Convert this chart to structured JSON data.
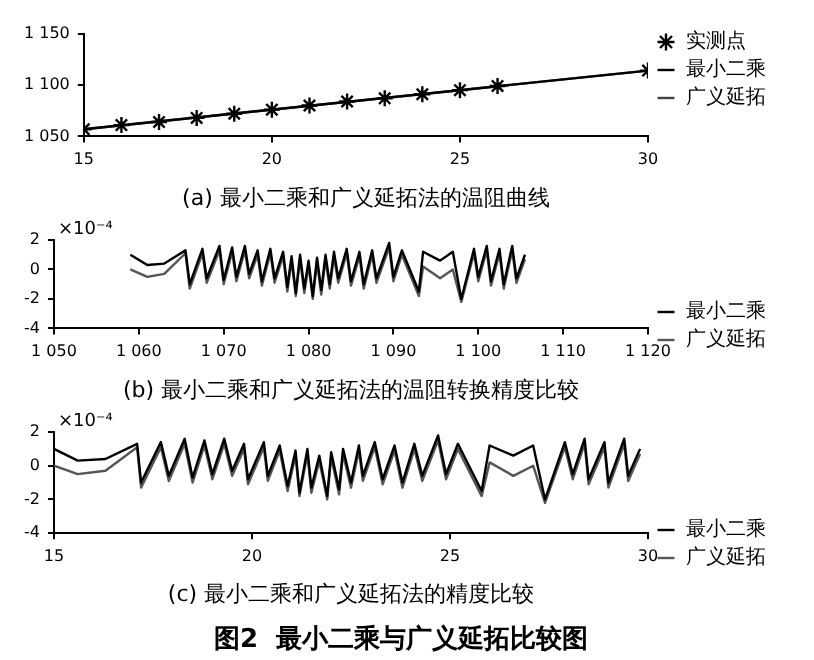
{
  "chart_data": [
    {
      "type": "line",
      "xlabel": "(a) 最小二乘和广义延拓法的温阻曲线",
      "xlim": [
        15,
        30
      ],
      "xticks": [
        15,
        20,
        25,
        30
      ],
      "ylim": [
        1050,
        1150
      ],
      "yticks": [
        {
          "value": 1050,
          "label": "1 050"
        },
        {
          "value": 1100,
          "label": "1 100"
        },
        {
          "value": 1150,
          "label": "1 150"
        }
      ],
      "legend": "top right",
      "grid": false,
      "series": [
        {
          "name": "实测点",
          "type": "scatter",
          "marker": "cross",
          "color": "#000000",
          "x": [
            15,
            16,
            17,
            18,
            19,
            20,
            21,
            22,
            23,
            24,
            25,
            26,
            27,
            28,
            29,
            30
          ],
          "values": [
            1057,
            1061,
            1064,
            1068,
            1072,
            1076,
            1080,
            1084,
            1087,
            1091,
            1095,
            1099,
            null,
            null,
            null,
            1114
          ]
        },
        {
          "name": "最小二乘",
          "type": "line",
          "marker": "none",
          "color": "#000000",
          "x": [
            15,
            30
          ],
          "values": [
            1057,
            1114
          ]
        },
        {
          "name": "广义延拓",
          "type": "line",
          "marker": "none",
          "color": "#444444",
          "x": [
            15,
            30
          ],
          "values": [
            1057,
            1114
          ]
        }
      ]
    },
    {
      "type": "line",
      "xlabel": "(b) 最小二乘和广义延拓法的温阻转换精度比较",
      "annotations": [
        "×10⁻⁴"
      ],
      "xlim": [
        1050,
        1120
      ],
      "xticks": [
        {
          "value": 1050,
          "label": "1 050"
        },
        {
          "value": 1060,
          "label": "1 060"
        },
        {
          "value": 1070,
          "label": "1 070"
        },
        {
          "value": 1080,
          "label": "1 080"
        },
        {
          "value": 1090,
          "label": "1 090"
        },
        {
          "value": 1100,
          "label": "1 100"
        },
        {
          "value": 1110,
          "label": "1 110"
        },
        {
          "value": 1120,
          "label": "1 120"
        }
      ],
      "ylim": [
        -4,
        2
      ],
      "yticks": [
        -4,
        -2,
        0,
        2
      ],
      "legend": "right",
      "grid": false,
      "series": [
        {
          "name": "最小二乘",
          "type": "line",
          "marker": "none",
          "color": "#000000",
          "x": [
            1059,
            1061,
            1063,
            1065.5,
            1066,
            1067.5,
            1068,
            1069.5,
            1070,
            1071,
            1071.5,
            1072.5,
            1073,
            1074,
            1074.5,
            1075.5,
            1076,
            1077,
            1077.5,
            1078,
            1078.5,
            1079,
            1079.5,
            1080,
            1080.5,
            1081,
            1081.5,
            1082,
            1082.5,
            1083,
            1083.5,
            1084.5,
            1085,
            1086,
            1086.5,
            1087.5,
            1088,
            1089.5,
            1090,
            1091,
            1093,
            1093.5,
            1095.5,
            1097,
            1098,
            1099.5,
            1100,
            1101,
            1101.5,
            1102.5,
            1103,
            1104,
            1104.5,
            1105.5
          ],
          "values": [
            1.0,
            0.3,
            0.4,
            1.3,
            -1.0,
            1.4,
            -0.6,
            1.6,
            -0.7,
            1.5,
            -0.5,
            1.6,
            -0.3,
            1.3,
            -0.8,
            1.4,
            -0.6,
            1.2,
            -1.2,
            0.9,
            -1.6,
            1.0,
            -1.3,
            0.6,
            -1.8,
            0.8,
            -1.4,
            1.0,
            -1.0,
            1.2,
            -0.6,
            1.4,
            -0.8,
            1.2,
            -1.0,
            1.3,
            -0.6,
            1.8,
            -0.5,
            1.3,
            -1.5,
            1.2,
            0.6,
            1.2,
            -2.0,
            1.4,
            -0.5,
            1.6,
            -0.8,
            1.4,
            -1.0,
            1.6,
            -0.6,
            1.0
          ]
        },
        {
          "name": "广义延拓",
          "type": "line",
          "marker": "none",
          "color": "#555555",
          "x": [
            1059,
            1061,
            1063,
            1065.5,
            1066,
            1067.5,
            1068,
            1069.5,
            1070,
            1071,
            1071.5,
            1072.5,
            1073,
            1074,
            1074.5,
            1075.5,
            1076,
            1077,
            1077.5,
            1078,
            1078.5,
            1079,
            1079.5,
            1080,
            1080.5,
            1081,
            1081.5,
            1082,
            1082.5,
            1083,
            1083.5,
            1084.5,
            1085,
            1086,
            1086.5,
            1087.5,
            1088,
            1089.5,
            1090,
            1091,
            1093,
            1093.5,
            1095.5,
            1097,
            1098,
            1099.5,
            1100,
            1101,
            1101.5,
            1102.5,
            1103,
            1104,
            1104.5,
            1105.5
          ],
          "values": [
            0.0,
            -0.5,
            -0.3,
            1.1,
            -1.3,
            1.1,
            -0.9,
            1.3,
            -1.0,
            1.2,
            -0.8,
            1.3,
            -0.6,
            1.0,
            -1.1,
            1.1,
            -0.9,
            0.9,
            -1.5,
            0.6,
            -1.8,
            0.7,
            -1.6,
            0.3,
            -2.0,
            0.5,
            -1.7,
            0.7,
            -1.3,
            0.9,
            -0.9,
            1.1,
            -1.1,
            0.9,
            -1.3,
            1.0,
            -0.9,
            1.5,
            -0.8,
            1.0,
            -1.8,
            0.2,
            -0.6,
            0.0,
            -2.2,
            1.1,
            -0.8,
            1.3,
            -1.1,
            1.1,
            -1.3,
            1.3,
            -0.9,
            0.7
          ]
        }
      ]
    },
    {
      "type": "line",
      "title": "图2  最小二乘与广义延拓比较图",
      "xlabel": "(c) 最小二乘和广义延拓法的精度比较",
      "annotations": [
        "×10⁻⁴"
      ],
      "xlim": [
        15,
        30
      ],
      "xticks": [
        15,
        20,
        25,
        30
      ],
      "ylim": [
        -4,
        2
      ],
      "yticks": [
        -4,
        -2,
        0,
        2
      ],
      "legend": "right",
      "grid": false,
      "series": [
        {
          "name": "最小二乘",
          "type": "line",
          "marker": "none",
          "color": "#000000",
          "x": [
            15,
            15.6,
            16.3,
            17.1,
            17.2,
            17.7,
            17.9,
            18.3,
            18.5,
            18.8,
            19.0,
            19.3,
            19.5,
            19.8,
            19.9,
            20.3,
            20.4,
            20.7,
            20.9,
            21.1,
            21.2,
            21.4,
            21.5,
            21.7,
            21.9,
            22.0,
            22.2,
            22.3,
            22.5,
            22.7,
            22.8,
            23.1,
            23.3,
            23.6,
            23.8,
            24.1,
            24.3,
            24.7,
            24.9,
            25.2,
            25.8,
            26.0,
            26.6,
            27.1,
            27.4,
            27.9,
            28.1,
            28.4,
            28.5,
            28.9,
            29.0,
            29.4,
            29.5,
            29.8
          ],
          "values": [
            1.0,
            0.3,
            0.4,
            1.3,
            -1.0,
            1.4,
            -0.6,
            1.6,
            -0.7,
            1.5,
            -0.5,
            1.6,
            -0.3,
            1.3,
            -0.8,
            1.4,
            -0.6,
            1.2,
            -1.2,
            0.9,
            -1.6,
            1.0,
            -1.3,
            0.6,
            -1.8,
            0.8,
            -1.4,
            1.0,
            -1.0,
            1.2,
            -0.6,
            1.4,
            -0.8,
            1.2,
            -1.0,
            1.3,
            -0.6,
            1.8,
            -0.5,
            1.3,
            -1.5,
            1.2,
            0.6,
            1.2,
            -2.0,
            1.4,
            -0.5,
            1.6,
            -0.8,
            1.4,
            -1.0,
            1.6,
            -0.6,
            1.0
          ]
        },
        {
          "name": "广义延拓",
          "type": "line",
          "marker": "none",
          "color": "#555555",
          "x": [
            15,
            15.6,
            16.3,
            17.1,
            17.2,
            17.7,
            17.9,
            18.3,
            18.5,
            18.8,
            19.0,
            19.3,
            19.5,
            19.8,
            19.9,
            20.3,
            20.4,
            20.7,
            20.9,
            21.1,
            21.2,
            21.4,
            21.5,
            21.7,
            21.9,
            22.0,
            22.2,
            22.3,
            22.5,
            22.7,
            22.8,
            23.1,
            23.3,
            23.6,
            23.8,
            24.1,
            24.3,
            24.7,
            24.9,
            25.2,
            25.8,
            26.0,
            26.6,
            27.1,
            27.4,
            27.9,
            28.1,
            28.4,
            28.5,
            28.9,
            29.0,
            29.4,
            29.5,
            29.8
          ],
          "values": [
            0.0,
            -0.5,
            -0.3,
            1.1,
            -1.3,
            1.1,
            -0.9,
            1.3,
            -1.0,
            1.2,
            -0.8,
            1.3,
            -0.6,
            1.0,
            -1.1,
            1.1,
            -0.9,
            0.9,
            -1.5,
            0.6,
            -1.8,
            0.7,
            -1.6,
            0.3,
            -2.0,
            0.5,
            -1.7,
            0.7,
            -1.3,
            0.9,
            -0.9,
            1.1,
            -1.1,
            0.9,
            -1.3,
            1.0,
            -0.9,
            1.5,
            -0.8,
            1.0,
            -1.8,
            0.2,
            -0.6,
            0.0,
            -2.2,
            1.1,
            -0.8,
            1.3,
            -1.1,
            1.1,
            -1.3,
            1.3,
            -0.9,
            0.7
          ]
        }
      ]
    }
  ]
}
